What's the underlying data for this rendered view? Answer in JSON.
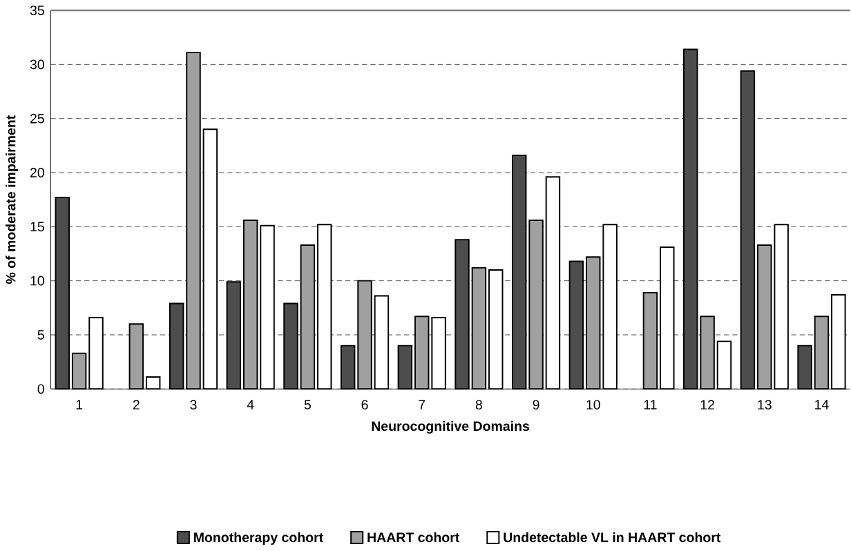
{
  "chart_data": {
    "type": "bar",
    "xlabel": "Neurocognitive Domains",
    "ylabel": "% of moderate impairment",
    "categories": [
      "1",
      "2",
      "3",
      "4",
      "5",
      "6",
      "7",
      "8",
      "9",
      "10",
      "11",
      "12",
      "13",
      "14"
    ],
    "series": [
      {
        "name": "Monotherapy cohort",
        "color": "#4d4d4d",
        "values": [
          17.7,
          null,
          7.9,
          9.9,
          7.9,
          4.0,
          4.0,
          13.8,
          21.6,
          11.8,
          null,
          31.4,
          29.4,
          4.0
        ]
      },
      {
        "name": "HAART cohort",
        "color": "#a0a0a0",
        "values": [
          3.3,
          6.0,
          31.1,
          15.6,
          13.3,
          10.0,
          6.7,
          11.2,
          15.6,
          12.2,
          8.9,
          6.7,
          13.3,
          6.7
        ]
      },
      {
        "name": "Undetectable VL in HAART cohort",
        "color": "#ffffff",
        "values": [
          6.6,
          1.1,
          24.0,
          15.1,
          15.2,
          8.6,
          6.6,
          11.0,
          19.6,
          15.2,
          13.1,
          4.4,
          15.2,
          8.7
        ]
      }
    ],
    "ylim": [
      0,
      35
    ],
    "yticks": [
      0,
      5,
      10,
      15,
      20,
      25,
      30,
      35
    ],
    "grid": "y",
    "legend": "bottom"
  }
}
